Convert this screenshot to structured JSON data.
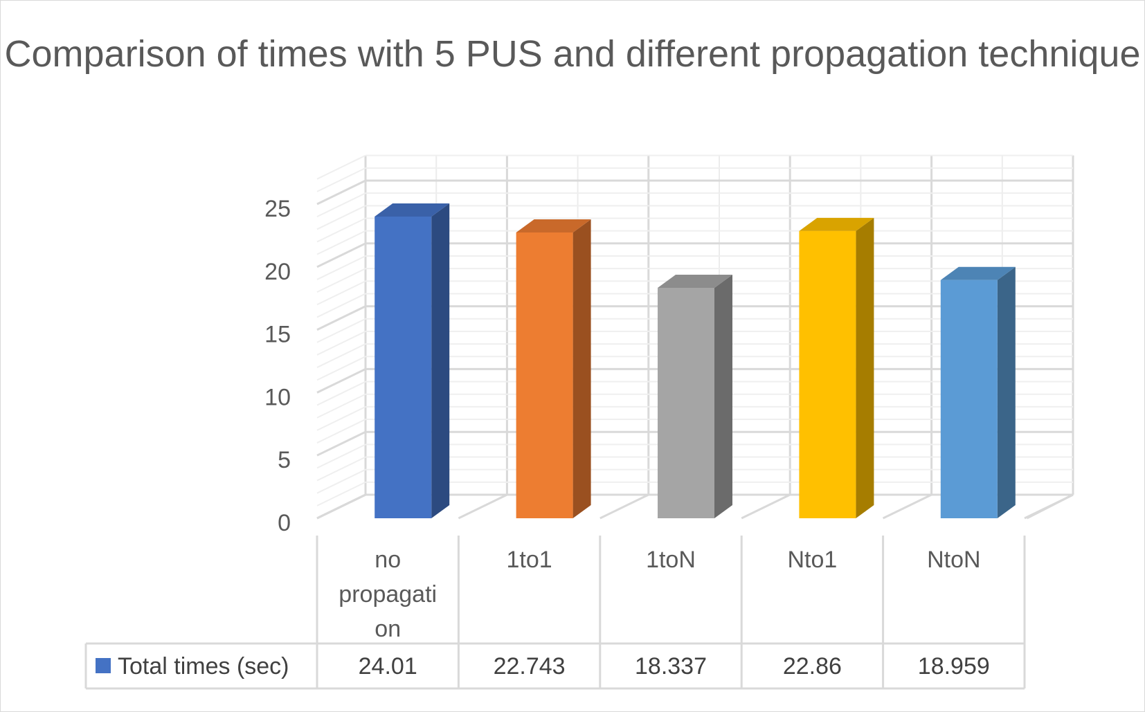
{
  "chart_data": {
    "type": "bar",
    "title": "Comparison of times with 5 PUS and different propagation technique",
    "categories": [
      "no propagation",
      "1to1",
      "1toN",
      "Nto1",
      "NtoN"
    ],
    "category_label_lines": [
      [
        "no",
        "propagati",
        "on"
      ],
      [
        "1to1"
      ],
      [
        "1toN"
      ],
      [
        "Nto1"
      ],
      [
        "NtoN"
      ]
    ],
    "series": [
      {
        "name": "Total times (sec)",
        "values": [
          24.01,
          22.743,
          18.337,
          22.86,
          18.959
        ],
        "value_labels": [
          "24.01",
          "22.743",
          "18.337",
          "22.86",
          "18.959"
        ],
        "color": "#4472c4"
      }
    ],
    "bar_colors": [
      "#4472c4",
      "#ed7d31",
      "#a5a5a5",
      "#ffc000",
      "#5b9bd5"
    ],
    "bar_side_colors": [
      "#2c4a80",
      "#9a5020",
      "#6b6b6b",
      "#a67d00",
      "#3b6589"
    ],
    "bar_top_colors": [
      "#3a61a8",
      "#c9692a",
      "#8c8c8c",
      "#d9a300",
      "#4d84b5"
    ],
    "yticks": [
      0,
      5,
      10,
      15,
      20,
      25
    ],
    "ylim": [
      0,
      27
    ],
    "grid": true,
    "legend": "data-table",
    "view": "3d-column"
  }
}
